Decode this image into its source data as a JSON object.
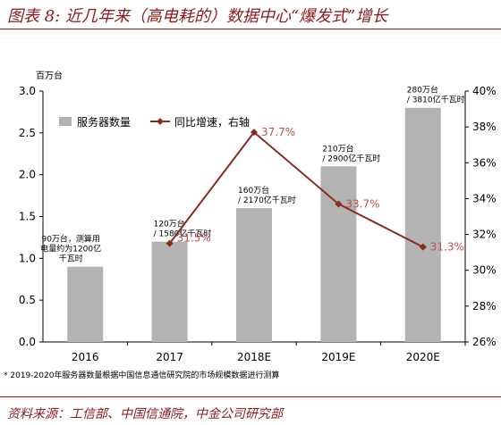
{
  "header": {
    "title": "图表 8: 近几年来（高电耗的）数据中心“爆发式”增长"
  },
  "footer": {
    "footnote": "* 2019-2020年服务器数量根据中国信息通信研究院的市场规模数据进行测算",
    "source": "资料来源：工信部、中国信通院，中金公司研究部"
  },
  "chart_data": {
    "type": "bar",
    "unit_left": "百万台",
    "categories": [
      "2016",
      "2017",
      "2018E",
      "2019E",
      "2020E"
    ],
    "series": [
      {
        "name": "服务器数量",
        "type": "bar",
        "axis": "left",
        "values": [
          0.9,
          1.2,
          1.6,
          2.1,
          2.8
        ],
        "color": "#b3b3b3"
      },
      {
        "name": "同比增速，右轴",
        "type": "line",
        "axis": "right",
        "values": [
          null,
          31.5,
          37.7,
          33.7,
          31.3
        ],
        "color": "#8B2A1E"
      }
    ],
    "y_left": {
      "min": 0.0,
      "max": 3.0,
      "ticks": [
        "0.0",
        "0.5",
        "1.0",
        "1.5",
        "2.0",
        "2.5",
        "3.0"
      ]
    },
    "y_right": {
      "min": 26,
      "max": 40,
      "ticks": [
        "26%",
        "28%",
        "30%",
        "32%",
        "34%",
        "36%",
        "38%",
        "40%"
      ]
    },
    "bar_labels": [
      [
        "90万台，测算用",
        "电量约为1200亿",
        "千瓦时"
      ],
      [
        "120万台",
        "/ 1580亿千瓦时"
      ],
      [
        "160万台",
        "/ 2170亿千瓦时"
      ],
      [
        "210万台",
        "/ 2900亿千瓦时"
      ],
      [
        "280万台",
        "/ 3810亿千瓦时"
      ]
    ],
    "line_labels": [
      "",
      "31.5%",
      "37.7%",
      "33.7%",
      "31.3%"
    ],
    "legend": "top-left",
    "grid": false
  }
}
